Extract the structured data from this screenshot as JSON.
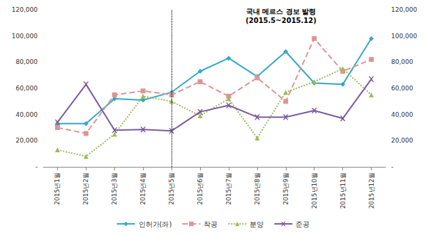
{
  "chart_data": {
    "type": "line",
    "annotation": {
      "lines": [
        "국내 메르스 경보 발령",
        "(2015.5~2015.12)"
      ],
      "x": "2015년5월",
      "line_style": "dotted"
    },
    "categories": [
      "2015년1월",
      "2015년2월",
      "2015년3월",
      "2015년4월",
      "2015년5월",
      "2015년6월",
      "2015년7월",
      "2015년8월",
      "2015년9월",
      "2015년10월",
      "2015년11월",
      "2015년12월"
    ],
    "series": [
      {
        "name": "인허가(좌)",
        "color": "#33a8c8",
        "marker": "diamond",
        "line_style": "solid",
        "values": [
          33000,
          33000,
          52000,
          51000,
          57000,
          73000,
          83000,
          69000,
          88000,
          64000,
          63000,
          98000
        ]
      },
      {
        "name": "착공",
        "color": "#dd9593",
        "marker": "square",
        "line_style": "dashed",
        "axis": "y2",
        "values": [
          30000,
          25500,
          55000,
          58000,
          55000,
          65000,
          54000,
          68000,
          50000,
          98000,
          73000,
          82000
        ]
      },
      {
        "name": "분양",
        "color": "#9bbb59",
        "marker": "triangle",
        "line_style": "dotted",
        "axis": "y2",
        "values": [
          13000,
          8000,
          25000,
          54000,
          50000,
          39000,
          52000,
          22000,
          57000,
          65000,
          75000,
          55000
        ]
      },
      {
        "name": "준공",
        "color": "#7b5a9c",
        "marker": "x",
        "line_style": "solid",
        "axis": "y2",
        "values": [
          34000,
          63000,
          28000,
          28500,
          27500,
          42000,
          47000,
          38000,
          38000,
          43000,
          37000,
          67000
        ]
      }
    ],
    "ylim": [
      0,
      120000
    ],
    "yticks": [
      {
        "value": 0,
        "label": "-"
      },
      {
        "value": 20000,
        "label": "20,000"
      },
      {
        "value": 40000,
        "label": "40,000"
      },
      {
        "value": 60000,
        "label": "60,000"
      },
      {
        "value": 80000,
        "label": "80,000"
      },
      {
        "value": 100000,
        "label": "100,000"
      },
      {
        "value": 120000,
        "label": "120,000"
      }
    ],
    "y2lim": [
      0,
      120000
    ],
    "y2ticks": [
      {
        "value": 0,
        "label": "-"
      },
      {
        "value": 20000,
        "label": "20,000"
      },
      {
        "value": 40000,
        "label": "40,000"
      },
      {
        "value": 60000,
        "label": "60,000"
      },
      {
        "value": 80000,
        "label": "80,000"
      },
      {
        "value": 100000,
        "label": "100,000"
      },
      {
        "value": 120000,
        "label": "120,000"
      }
    ],
    "grid": false,
    "legend": "bottom"
  }
}
